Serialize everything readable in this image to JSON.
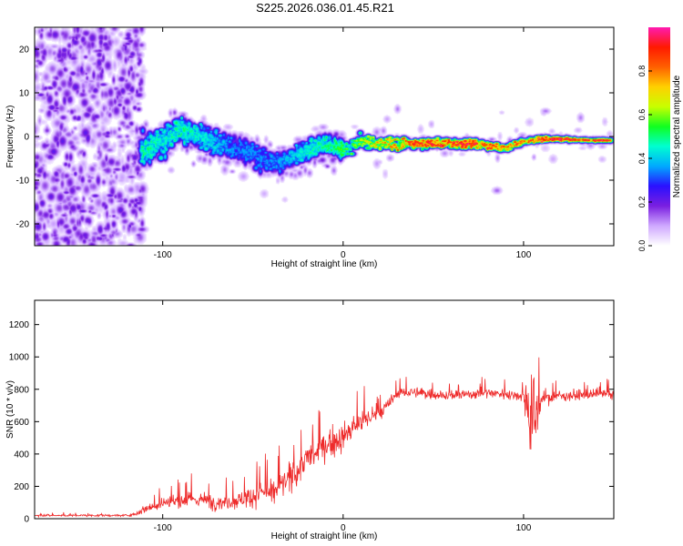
{
  "title": "S225.2026.036.01.45.R21",
  "colors": {
    "snr_line": "#ee2a2a",
    "colormap": [
      "#ffffff",
      "#cfa8ff",
      "#7a1fe0",
      "#2a10ff",
      "#00aaff",
      "#00ffd0",
      "#10ff20",
      "#c8ff00",
      "#ffd000",
      "#ff6000",
      "#ff1a00",
      "#ff1ab0"
    ]
  },
  "chart_data": [
    {
      "type": "heatmap",
      "name": "spectrogram",
      "title": "",
      "xlabel": "Height of straight line (km)",
      "ylabel": "Frequency (Hz)",
      "xlim": [
        -171,
        150
      ],
      "ylim": [
        -25,
        25
      ],
      "xticks": [
        -100,
        0,
        100
      ],
      "xtick_labels": [
        "-100",
        "0",
        "100"
      ],
      "yticks": [
        -20,
        -10,
        0,
        10,
        20
      ],
      "ytick_labels": [
        "-20",
        "-10",
        "0",
        "10",
        "20"
      ],
      "colorbar": {
        "label": "Normalized spectral amplitude",
        "range": [
          0,
          1
        ],
        "ticks": [
          0.0,
          0.2,
          0.4,
          0.6,
          0.8
        ],
        "tick_labels": [
          "0.0",
          "0.2",
          "0.4",
          "0.6",
          "0.8"
        ]
      },
      "ridge": {
        "description": "dominant frequency track",
        "x": [
          -112,
          -100,
          -90,
          -80,
          -70,
          -60,
          -50,
          -40,
          -30,
          -20,
          -10,
          0,
          10,
          20,
          30,
          40,
          50,
          60,
          70,
          80,
          90,
          100,
          110,
          120,
          130,
          140,
          148
        ],
        "freq": [
          -3.5,
          -1,
          2,
          0,
          -1.5,
          -2.5,
          -4,
          -6,
          -5,
          -3,
          -1.5,
          -3,
          -1,
          -1.5,
          -1.5,
          -1.5,
          -1.5,
          -1.5,
          -1.5,
          -2,
          -2.5,
          -1,
          -0.5,
          -0.5,
          -0.7,
          -0.8,
          -0.8
        ],
        "amplitude": [
          0.5,
          0.45,
          0.5,
          0.45,
          0.4,
          0.35,
          0.35,
          0.35,
          0.4,
          0.45,
          0.5,
          0.55,
          0.65,
          0.75,
          0.85,
          0.9,
          0.95,
          0.95,
          0.95,
          0.9,
          0.85,
          0.85,
          0.95,
          0.95,
          0.9,
          0.95,
          0.9
        ]
      },
      "noise_region": {
        "x_range": [
          -171,
          -111
        ],
        "freq_range": [
          -25,
          25
        ],
        "amplitude": 0.15
      }
    },
    {
      "type": "line",
      "name": "snr",
      "title": "",
      "xlabel": "Height of straight line (km)",
      "ylabel": "SNR (10 * v/v)",
      "xlim": [
        -171,
        150
      ],
      "ylim": [
        0,
        1350
      ],
      "xticks": [
        -100,
        0,
        100
      ],
      "xtick_labels": [
        "-100",
        "0",
        "100"
      ],
      "yticks": [
        0,
        200,
        400,
        600,
        800,
        1000,
        1200
      ],
      "ytick_labels": [
        "0",
        "200",
        "400",
        "600",
        "800",
        "1000",
        "1200"
      ],
      "envelope_x": [
        -171,
        -120,
        -115,
        -110,
        -100,
        -90,
        -80,
        -70,
        -60,
        -50,
        -45,
        -40,
        -35,
        -30,
        -25,
        -20,
        -15,
        -10,
        -5,
        0,
        5,
        10,
        15,
        20,
        25,
        30,
        40,
        60,
        80,
        100,
        103,
        105,
        107,
        110,
        120,
        150
      ],
      "envelope_mean": [
        20,
        20,
        30,
        60,
        100,
        110,
        120,
        100,
        110,
        140,
        170,
        150,
        200,
        250,
        300,
        380,
        400,
        450,
        480,
        500,
        550,
        600,
        630,
        650,
        700,
        780,
        780,
        760,
        780,
        760,
        700,
        600,
        650,
        740,
        760,
        770
      ],
      "envelope_spread": [
        10,
        10,
        20,
        40,
        70,
        80,
        80,
        70,
        80,
        100,
        120,
        110,
        120,
        130,
        140,
        150,
        140,
        140,
        130,
        140,
        120,
        110,
        100,
        80,
        70,
        50,
        50,
        50,
        50,
        50,
        400,
        600,
        350,
        60,
        50,
        50
      ]
    }
  ]
}
